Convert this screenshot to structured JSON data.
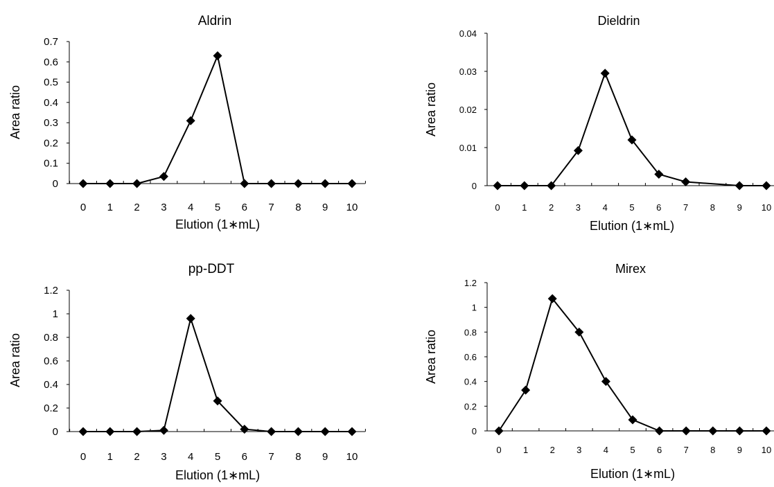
{
  "colors": {
    "line": "#000000",
    "marker": "#000000",
    "background": "#ffffff"
  },
  "chart_data": [
    {
      "type": "line",
      "title": "Aldrin",
      "xlabel": "Elution (1∗mL)",
      "ylabel": "Area ratio",
      "x": [
        0,
        1,
        2,
        3,
        4,
        5,
        6,
        7,
        8,
        9,
        10
      ],
      "series": [
        {
          "values": [
            0,
            0,
            0,
            0.035,
            0.31,
            0.63,
            0,
            0,
            0,
            0,
            0
          ]
        }
      ],
      "xlim": [
        0,
        10
      ],
      "ylim": [
        0,
        0.7
      ],
      "xticks": [
        "0",
        "1",
        "2",
        "3",
        "4",
        "5",
        "6",
        "7",
        "8",
        "9",
        "10"
      ],
      "yticks": [
        "0",
        "0.1",
        "0.2",
        "0.3",
        "0.4",
        "0.5",
        "0.6",
        "0.7"
      ],
      "marker": "diamond",
      "grid": false
    },
    {
      "type": "line",
      "title": "Dieldrin",
      "xlabel": "Elution (1∗mL)",
      "ylabel": "Area ratio",
      "x": [
        0,
        1,
        2,
        3,
        4,
        5,
        6,
        7,
        9,
        10
      ],
      "series": [
        {
          "values": [
            0,
            0,
            0,
            0.0092,
            0.0295,
            0.012,
            0.003,
            0.001,
            0,
            0
          ]
        }
      ],
      "xlim": [
        0,
        10
      ],
      "ylim": [
        0,
        0.04
      ],
      "xticks": [
        "0",
        "1",
        "2",
        "3",
        "4",
        "5",
        "6",
        "7",
        "8",
        "9",
        "10"
      ],
      "yticks": [
        "0",
        "0.01",
        "0.02",
        "0.03",
        "0.04"
      ],
      "marker": "diamond",
      "grid": false
    },
    {
      "type": "line",
      "title": "pp-DDT",
      "xlabel": "Elution (1∗mL)",
      "ylabel": "Area ratio",
      "x": [
        0,
        1,
        2,
        3,
        4,
        5,
        6,
        7,
        8,
        9,
        10
      ],
      "series": [
        {
          "values": [
            0,
            0,
            0,
            0.01,
            0.96,
            0.26,
            0.02,
            0,
            0,
            0,
            0
          ]
        }
      ],
      "xlim": [
        0,
        10
      ],
      "ylim": [
        0,
        1.2
      ],
      "xticks": [
        "0",
        "1",
        "2",
        "3",
        "4",
        "5",
        "6",
        "7",
        "8",
        "9",
        "10"
      ],
      "yticks": [
        "0",
        "0.2",
        "0.4",
        "0.6",
        "0.8",
        "1",
        "1.2"
      ],
      "marker": "diamond",
      "grid": false
    },
    {
      "type": "line",
      "title": "Mirex",
      "xlabel": "Elution (1∗mL)",
      "ylabel": "Area ratio",
      "x": [
        0,
        1,
        2,
        3,
        4,
        5,
        6,
        7,
        8,
        9,
        10
      ],
      "series": [
        {
          "values": [
            0,
            0.33,
            1.07,
            0.8,
            0.4,
            0.09,
            0,
            0,
            0,
            0,
            0
          ]
        }
      ],
      "xlim": [
        0,
        10
      ],
      "ylim": [
        0,
        1.2
      ],
      "xticks": [
        "0",
        "1",
        "2",
        "3",
        "4",
        "5",
        "6",
        "7",
        "8",
        "9",
        "10"
      ],
      "yticks": [
        "0",
        "0.2",
        "0.4",
        "0.6",
        "0.8",
        "1",
        "1.2"
      ],
      "marker": "diamond",
      "grid": false
    }
  ]
}
